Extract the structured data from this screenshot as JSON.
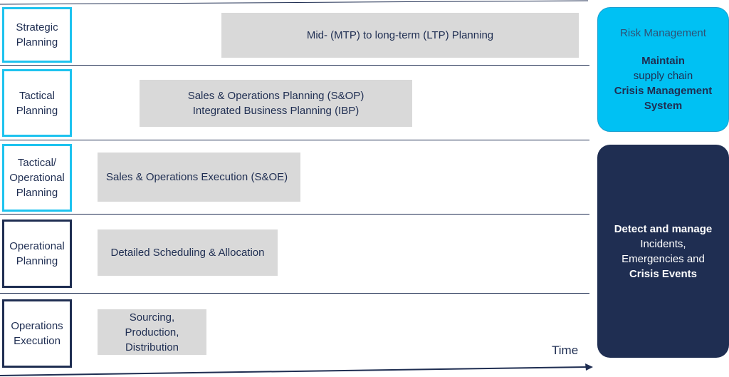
{
  "levels": [
    {
      "label": "Strategic\nPlanning"
    },
    {
      "label": "Tactical\nPlanning"
    },
    {
      "label": "Tactical/\nOperational\nPlanning"
    },
    {
      "label": "Operational\nPlanning"
    },
    {
      "label": "Operations\nExecution"
    }
  ],
  "bars": [
    {
      "label": "Mid- (MTP) to long-term (LTP) Planning"
    },
    {
      "label": "Sales & Operations Planning (S&OP)\nIntegrated Business Planning (IBP)"
    },
    {
      "label": "Sales & Operations Execution  (S&OE)"
    },
    {
      "label": "Detailed Scheduling & Allocation"
    },
    {
      "label": "Sourcing,\nProduction,\nDistribution"
    }
  ],
  "risk_panel": {
    "title": "Risk Management",
    "line1": "Maintain",
    "line2": "supply chain",
    "line3": "Crisis Management",
    "line4": "System"
  },
  "crisis_panel": {
    "line1": "Detect and manage",
    "line2": "Incidents,",
    "line3": "Emergencies and",
    "line4": "Crisis Events"
  },
  "axis": {
    "label": "Time"
  },
  "colors": {
    "navy": "#1f2e52",
    "cyan": "#1ec3ef",
    "bar_gray": "#d9d9d9",
    "risk_blue": "#00c1f3"
  }
}
